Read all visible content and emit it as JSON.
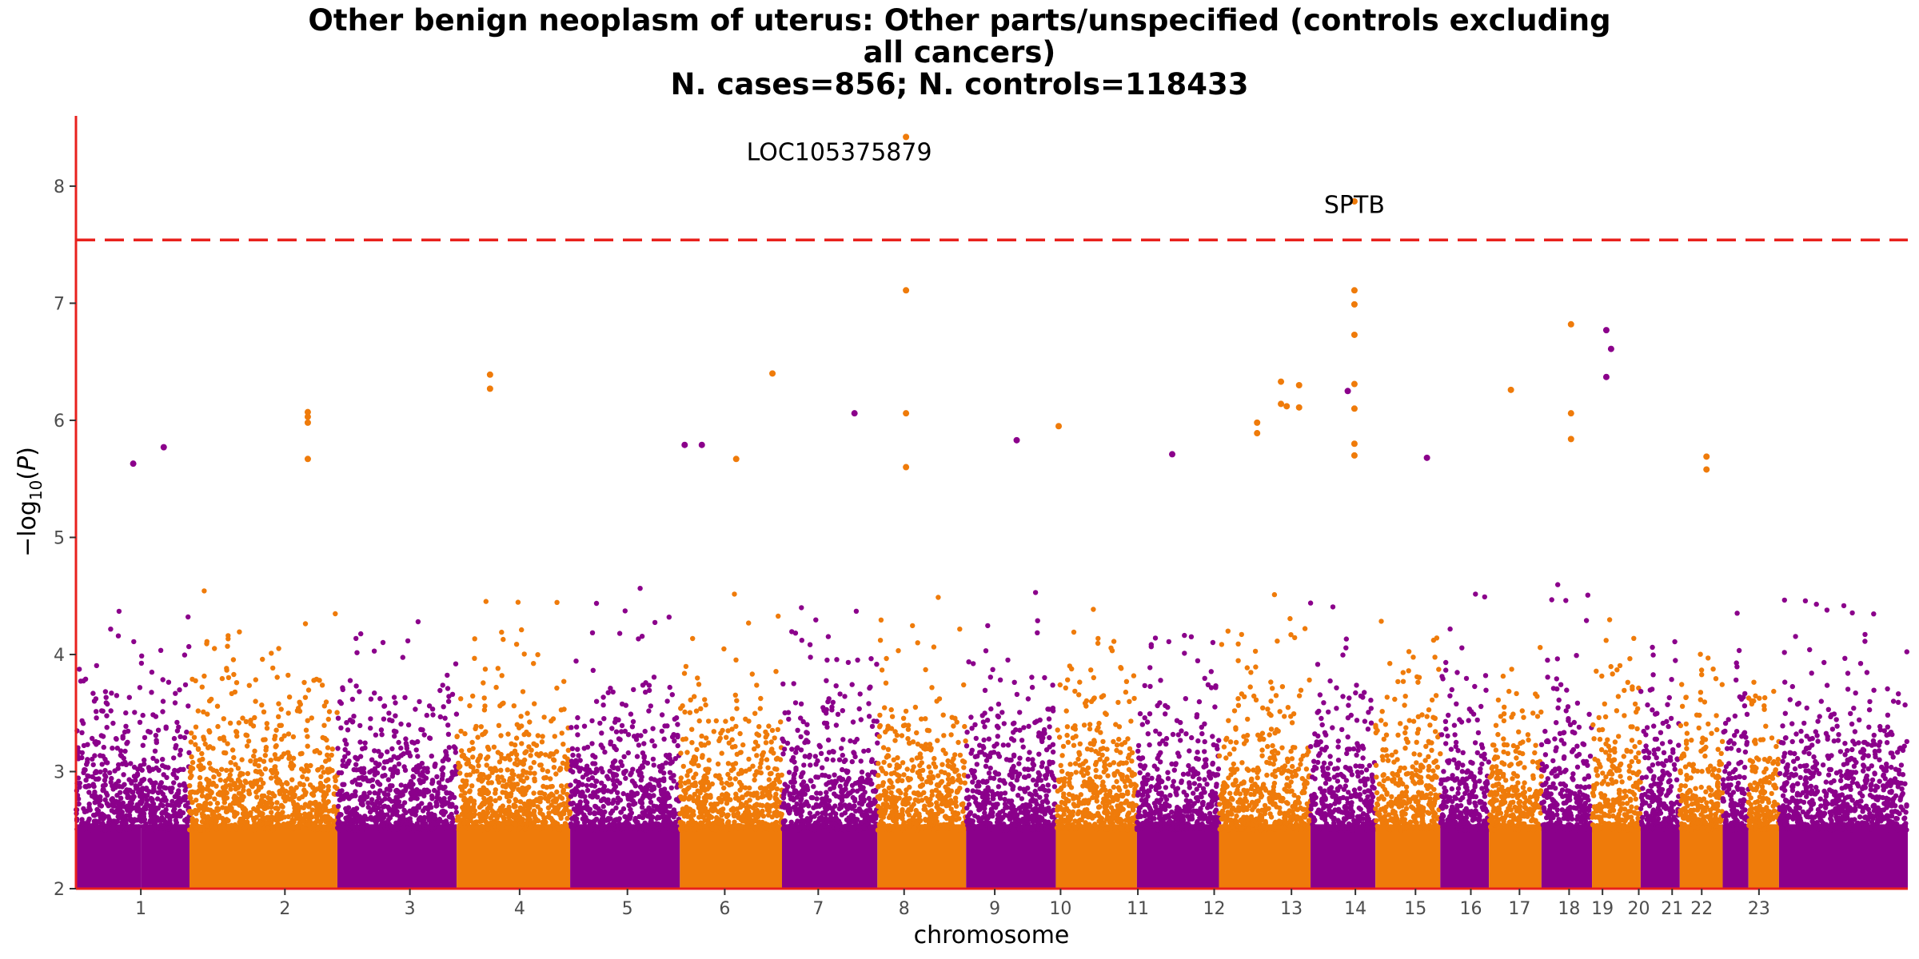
{
  "chart_data": {
    "type": "scatter",
    "subtype": "manhattan",
    "title_lines": [
      "Other benign neoplasm of uterus: Other parts/unspecified (controls excluding",
      "all cancers)",
      "N. cases=856; N. controls=118433"
    ],
    "xlabel": "chromosome",
    "ylabel": "−log10(P)",
    "ylim": [
      2,
      8.6
    ],
    "yticks": [
      2,
      3,
      4,
      5,
      6,
      7,
      8
    ],
    "significance_threshold": 7.54,
    "threshold_color": "#e8211d",
    "axis_color": "#e8211d",
    "colors": [
      "#8b008b",
      "#ef7b0a"
    ],
    "legend": "none",
    "grid": false,
    "chromosomes": [
      {
        "label": "1",
        "start": 0,
        "end": 6.8,
        "color": "#8b008b",
        "max": 4.4
      },
      {
        "label": "1",
        "start": 6.8,
        "end": 11.9,
        "color": "#8b008b",
        "max": 5.8
      },
      {
        "label": "2",
        "start": 11.9,
        "end": 27.4,
        "color": "#ef7b0a",
        "max": 6.1
      },
      {
        "label": "3",
        "start": 27.4,
        "end": 39.9,
        "color": "#8b008b",
        "max": 4.6
      },
      {
        "label": "4",
        "start": 39.9,
        "end": 51.8,
        "color": "#ef7b0a",
        "max": 6.4
      },
      {
        "label": "5",
        "start": 51.8,
        "end": 63.3,
        "color": "#8b008b",
        "max": 5.8
      },
      {
        "label": "6",
        "start": 63.3,
        "end": 74.0,
        "color": "#ef7b0a",
        "max": 6.4
      },
      {
        "label": "7",
        "start": 74.0,
        "end": 84.0,
        "color": "#8b008b",
        "max": 6.1
      },
      {
        "label": "8",
        "start": 84.0,
        "end": 93.3,
        "color": "#ef7b0a",
        "max": 8.42
      },
      {
        "label": "9",
        "start": 93.3,
        "end": 102.7,
        "color": "#8b008b",
        "max": 5.9
      },
      {
        "label": "10",
        "start": 102.7,
        "end": 111.2,
        "color": "#ef7b0a",
        "max": 5.5
      },
      {
        "label": "11",
        "start": 111.2,
        "end": 119.8,
        "color": "#8b008b",
        "max": 5.7
      },
      {
        "label": "12",
        "start": 119.8,
        "end": 129.4,
        "color": "#ef7b0a",
        "max": 6.3
      },
      {
        "label": "13",
        "start": 129.4,
        "end": 136.2,
        "color": "#8b008b",
        "max": 6.3
      },
      {
        "label": "14",
        "start": 136.2,
        "end": 143.0,
        "color": "#ef7b0a",
        "max": 7.87
      },
      {
        "label": "15",
        "start": 143.0,
        "end": 148.1,
        "color": "#8b008b",
        "max": 5.7
      },
      {
        "label": "16",
        "start": 148.1,
        "end": 153.6,
        "color": "#ef7b0a",
        "max": 6.3
      },
      {
        "label": "17",
        "start": 153.6,
        "end": 158.9,
        "color": "#8b008b",
        "max": 5.7
      },
      {
        "label": "18",
        "start": 158.9,
        "end": 164.0,
        "color": "#ef7b0a",
        "max": 6.8
      },
      {
        "label": "19",
        "start": 164.0,
        "end": 168.1,
        "color": "#8b008b",
        "max": 6.8
      },
      {
        "label": "20",
        "start": 168.1,
        "end": 172.6,
        "color": "#ef7b0a",
        "max": 5.7
      },
      {
        "label": "21",
        "start": 172.6,
        "end": 175.3,
        "color": "#8b008b",
        "max": 4.5
      },
      {
        "label": "22",
        "start": 175.3,
        "end": 178.5,
        "color": "#ef7b0a",
        "max": 4.5
      },
      {
        "label": "23",
        "start": 178.5,
        "end": 192.0,
        "color": "#8b008b",
        "max": 4.5
      }
    ],
    "x_tick_labels": [
      {
        "label": "1",
        "pos": 6.8
      },
      {
        "label": "2",
        "pos": 21.9
      },
      {
        "label": "3",
        "pos": 35.0
      },
      {
        "label": "4",
        "pos": 46.5
      },
      {
        "label": "5",
        "pos": 57.8
      },
      {
        "label": "6",
        "pos": 68.0
      },
      {
        "label": "7",
        "pos": 77.8
      },
      {
        "label": "8",
        "pos": 86.8
      },
      {
        "label": "9",
        "pos": 96.3
      },
      {
        "label": "10",
        "pos": 103.2
      },
      {
        "label": "11",
        "pos": 111.3
      },
      {
        "label": "12",
        "pos": 119.3
      },
      {
        "label": "13",
        "pos": 127.4
      },
      {
        "label": "14",
        "pos": 134.1
      },
      {
        "label": "15",
        "pos": 140.4
      },
      {
        "label": "16",
        "pos": 146.2
      },
      {
        "label": "17",
        "pos": 151.3
      },
      {
        "label": "18",
        "pos": 156.5
      },
      {
        "label": "19",
        "pos": 160.0
      },
      {
        "label": "20",
        "pos": 163.8
      },
      {
        "label": "21",
        "pos": 167.3
      },
      {
        "label": "22",
        "pos": 170.4
      },
      {
        "label": "23",
        "pos": 176.4
      }
    ],
    "highlight_points": [
      {
        "x": 87.0,
        "y": 8.42,
        "color": "#ef7b0a"
      },
      {
        "x": 87.0,
        "y": 7.11,
        "color": "#ef7b0a"
      },
      {
        "x": 87.0,
        "y": 6.06,
        "color": "#ef7b0a"
      },
      {
        "x": 87.0,
        "y": 5.6,
        "color": "#ef7b0a"
      },
      {
        "x": 134.0,
        "y": 7.87,
        "color": "#ef7b0a"
      },
      {
        "x": 134.0,
        "y": 7.11,
        "color": "#ef7b0a"
      },
      {
        "x": 134.0,
        "y": 6.99,
        "color": "#ef7b0a"
      },
      {
        "x": 134.0,
        "y": 6.73,
        "color": "#ef7b0a"
      },
      {
        "x": 134.0,
        "y": 6.31,
        "color": "#ef7b0a"
      },
      {
        "x": 134.0,
        "y": 6.1,
        "color": "#ef7b0a"
      },
      {
        "x": 134.0,
        "y": 5.8,
        "color": "#ef7b0a"
      },
      {
        "x": 134.0,
        "y": 5.7,
        "color": "#ef7b0a"
      },
      {
        "x": 156.7,
        "y": 6.82,
        "color": "#ef7b0a"
      },
      {
        "x": 156.7,
        "y": 6.06,
        "color": "#ef7b0a"
      },
      {
        "x": 156.7,
        "y": 5.84,
        "color": "#ef7b0a"
      },
      {
        "x": 160.4,
        "y": 6.77,
        "color": "#8b008b"
      },
      {
        "x": 160.9,
        "y": 6.61,
        "color": "#8b008b"
      },
      {
        "x": 160.4,
        "y": 6.37,
        "color": "#8b008b"
      },
      {
        "x": 73.0,
        "y": 6.4,
        "color": "#ef7b0a"
      },
      {
        "x": 43.4,
        "y": 6.39,
        "color": "#ef7b0a"
      },
      {
        "x": 43.4,
        "y": 6.27,
        "color": "#ef7b0a"
      },
      {
        "x": 24.3,
        "y": 6.07,
        "color": "#ef7b0a"
      },
      {
        "x": 24.3,
        "y": 6.03,
        "color": "#ef7b0a"
      },
      {
        "x": 24.3,
        "y": 5.98,
        "color": "#ef7b0a"
      },
      {
        "x": 24.3,
        "y": 5.67,
        "color": "#ef7b0a"
      },
      {
        "x": 81.6,
        "y": 6.06,
        "color": "#8b008b"
      },
      {
        "x": 103.0,
        "y": 5.95,
        "color": "#ef7b0a"
      },
      {
        "x": 98.6,
        "y": 5.83,
        "color": "#8b008b"
      },
      {
        "x": 126.3,
        "y": 6.33,
        "color": "#ef7b0a"
      },
      {
        "x": 126.3,
        "y": 6.14,
        "color": "#ef7b0a"
      },
      {
        "x": 126.9,
        "y": 6.12,
        "color": "#ef7b0a"
      },
      {
        "x": 128.2,
        "y": 6.3,
        "color": "#ef7b0a"
      },
      {
        "x": 128.2,
        "y": 6.11,
        "color": "#ef7b0a"
      },
      {
        "x": 123.8,
        "y": 5.98,
        "color": "#ef7b0a"
      },
      {
        "x": 123.8,
        "y": 5.89,
        "color": "#ef7b0a"
      },
      {
        "x": 133.3,
        "y": 6.25,
        "color": "#8b008b"
      },
      {
        "x": 150.4,
        "y": 6.26,
        "color": "#ef7b0a"
      },
      {
        "x": 9.2,
        "y": 5.77,
        "color": "#8b008b"
      },
      {
        "x": 6.0,
        "y": 5.63,
        "color": "#8b008b"
      },
      {
        "x": 65.6,
        "y": 5.79,
        "color": "#8b008b"
      },
      {
        "x": 63.8,
        "y": 5.79,
        "color": "#8b008b"
      },
      {
        "x": 69.2,
        "y": 5.67,
        "color": "#ef7b0a"
      },
      {
        "x": 114.9,
        "y": 5.71,
        "color": "#8b008b"
      },
      {
        "x": 141.6,
        "y": 5.68,
        "color": "#8b008b"
      },
      {
        "x": 170.9,
        "y": 5.69,
        "color": "#ef7b0a"
      },
      {
        "x": 170.9,
        "y": 5.58,
        "color": "#ef7b0a"
      }
    ],
    "annotations": [
      {
        "text": "LOC105375879",
        "x": 80.0,
        "y": 8.29
      },
      {
        "text": "SPTB",
        "x": 134.0,
        "y": 7.84
      }
    ]
  }
}
